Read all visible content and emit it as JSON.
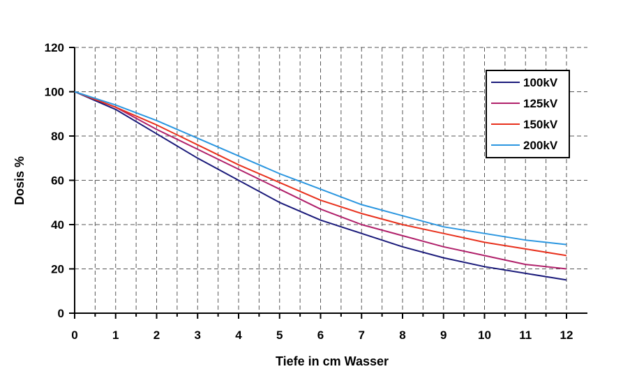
{
  "chart_data": {
    "type": "line",
    "title": "",
    "xlabel": "Tiefe in cm Wasser",
    "ylabel": "Dosis %",
    "xlim": [
      0,
      12
    ],
    "ylim": [
      0,
      120
    ],
    "x_ticks": [
      "0",
      "1",
      "2",
      "3",
      "4",
      "5",
      "6",
      "7",
      "8",
      "9",
      "10",
      "11",
      "12"
    ],
    "y_ticks": [
      "0",
      "20",
      "40",
      "60",
      "80",
      "100",
      "120"
    ],
    "grid": "dashed, vertical every 0.5 cm, horizontal every 20",
    "legend_position": "top-right",
    "x": [
      0,
      1,
      2,
      3,
      4,
      5,
      6,
      7,
      8,
      9,
      10,
      11,
      12
    ],
    "series": [
      {
        "name": "100kV",
        "color": "#1a1a7a",
        "values": [
          100,
          92,
          81,
          70,
          60,
          50,
          42,
          36,
          30,
          25,
          21,
          18,
          15
        ]
      },
      {
        "name": "125kV",
        "color": "#b0206a",
        "values": [
          100,
          93,
          83,
          74,
          65,
          56,
          47,
          40,
          35,
          30,
          26,
          22,
          20
        ]
      },
      {
        "name": "150kV",
        "color": "#e8301c",
        "values": [
          100,
          93,
          85,
          76,
          67,
          59,
          51,
          45,
          40,
          36,
          32,
          29,
          26
        ]
      },
      {
        "name": "200kV",
        "color": "#2a96e0",
        "values": [
          100,
          94,
          87,
          79,
          71,
          63,
          56,
          49,
          44,
          39,
          36,
          33,
          31
        ]
      }
    ]
  }
}
